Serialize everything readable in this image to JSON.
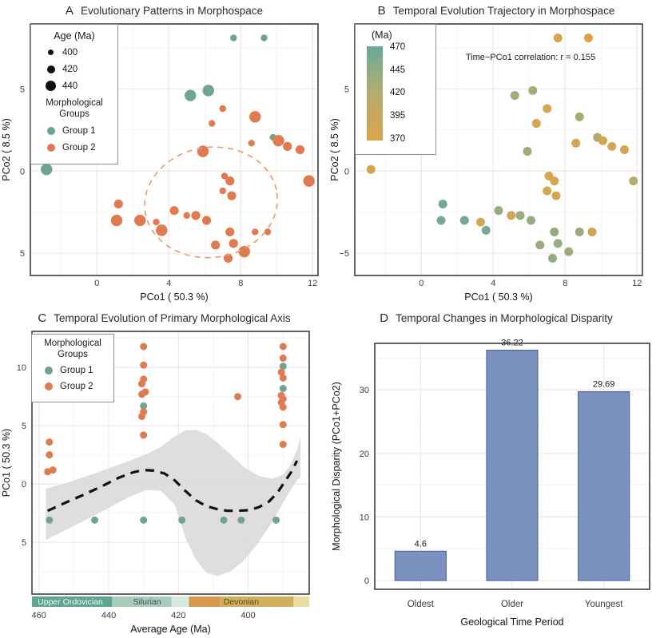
{
  "figure": {
    "background": "#ffffff",
    "frame_color": "#3d3d3d",
    "grid_major_color": "#f0e6e6",
    "grid_minor_color": "#f8f3f3",
    "group_colors": {
      "group1": "#6FA48F",
      "group2": "#E07A50"
    }
  },
  "chart_data": [
    {
      "panel_label": "A",
      "type": "scatter",
      "title": "Evolutionary Patterns in Morphospace",
      "xlabel": "PCo1 ( 50.3 %)",
      "ylabel": "PCo2 ( 8.5 %)",
      "xlim": [
        -3.7,
        12.3
      ],
      "ylim": [
        -6.35,
        8.95
      ],
      "x_ticks": [
        {
          "v": 0,
          "t": "0"
        },
        {
          "v": 4,
          "t": "4"
        },
        {
          "v": 8,
          "t": "8"
        },
        {
          "v": 12,
          "t": "12"
        }
      ],
      "y_ticks": [
        {
          "v": 5,
          "t": "5"
        },
        {
          "v": 0,
          "t": "0"
        },
        {
          "v": -5,
          "t": "5"
        }
      ],
      "x_minor": [
        -2,
        2,
        6,
        10
      ],
      "y_minor": [
        7.5,
        2.5,
        -2.5
      ],
      "legend": {
        "size_title": "Age (Ma)",
        "size_items": [
          {
            "label": "400"
          },
          {
            "label": "420"
          },
          {
            "label": "440"
          }
        ],
        "group_title": "Morphological Groups",
        "group_items": [
          {
            "label": "Group 1",
            "color": "#6FA48F"
          },
          {
            "label": "Group 2",
            "color": "#E07A50"
          }
        ]
      },
      "ellipse": {
        "cx": 6.35,
        "cy": -1.9,
        "rx": 3.7,
        "ry": 3.35,
        "angle": -8,
        "color": "#ED9C72"
      },
      "size_radius": {
        "400": 4.2,
        "420": 5.6,
        "440": 7.2
      },
      "points": [
        {
          "x": -2.8,
          "y": 0.1,
          "s": 440,
          "g": 1,
          "a": 375
        },
        {
          "x": 7.6,
          "y": 8.1,
          "s": 400,
          "g": 1,
          "a": 372
        },
        {
          "x": 9.3,
          "y": 8.1,
          "s": 400,
          "g": 1,
          "a": 372
        },
        {
          "x": 5.2,
          "y": 4.6,
          "s": 440,
          "g": 1,
          "a": 430
        },
        {
          "x": 6.2,
          "y": 4.9,
          "s": 440,
          "g": 1,
          "a": 430
        },
        {
          "x": 9.8,
          "y": 2.05,
          "s": 400,
          "g": 1,
          "a": 428
        },
        {
          "x": 7.0,
          "y": 3.8,
          "s": 400,
          "g": 2,
          "a": 380
        },
        {
          "x": 6.4,
          "y": 2.9,
          "s": 400,
          "g": 2,
          "a": 380
        },
        {
          "x": 8.8,
          "y": 3.3,
          "s": 440,
          "g": 2,
          "a": 430
        },
        {
          "x": 10.1,
          "y": 1.85,
          "s": 440,
          "g": 2,
          "a": 382
        },
        {
          "x": 10.6,
          "y": 1.5,
          "s": 420,
          "g": 2,
          "a": 380
        },
        {
          "x": 8.6,
          "y": 1.7,
          "s": 400,
          "g": 2,
          "a": 382
        },
        {
          "x": 5.9,
          "y": 1.2,
          "s": 440,
          "g": 2,
          "a": 432
        },
        {
          "x": 11.3,
          "y": 1.3,
          "s": 420,
          "g": 2,
          "a": 380
        },
        {
          "x": 11.8,
          "y": -0.6,
          "s": 440,
          "g": 2,
          "a": 420
        },
        {
          "x": 7.1,
          "y": -0.3,
          "s": 400,
          "g": 2,
          "a": 378
        },
        {
          "x": 7.4,
          "y": -0.6,
          "s": 420,
          "g": 2,
          "a": 378
        },
        {
          "x": 7.0,
          "y": -1.2,
          "s": 400,
          "g": 2,
          "a": 380
        },
        {
          "x": 7.5,
          "y": -1.5,
          "s": 420,
          "g": 2,
          "a": 380
        },
        {
          "x": 1.2,
          "y": -2.0,
          "s": 420,
          "g": 2,
          "a": 462
        },
        {
          "x": 1.1,
          "y": -3.0,
          "s": 440,
          "g": 2,
          "a": 465
        },
        {
          "x": 2.4,
          "y": -3.0,
          "s": 440,
          "g": 2,
          "a": 463
        },
        {
          "x": 3.3,
          "y": -3.1,
          "s": 400,
          "g": 2,
          "a": 390
        },
        {
          "x": 3.6,
          "y": -3.6,
          "s": 440,
          "g": 2,
          "a": 460
        },
        {
          "x": 4.3,
          "y": -2.4,
          "s": 420,
          "g": 2,
          "a": 440
        },
        {
          "x": 5.0,
          "y": -2.7,
          "s": 400,
          "g": 2,
          "a": 388
        },
        {
          "x": 5.5,
          "y": -2.7,
          "s": 420,
          "g": 2,
          "a": 437
        },
        {
          "x": 6.1,
          "y": -3.0,
          "s": 420,
          "g": 2,
          "a": 440
        },
        {
          "x": 6.6,
          "y": -4.5,
          "s": 420,
          "g": 2,
          "a": 438
        },
        {
          "x": 7.4,
          "y": -3.7,
          "s": 420,
          "g": 2,
          "a": 442
        },
        {
          "x": 7.6,
          "y": -4.4,
          "s": 420,
          "g": 2,
          "a": 440
        },
        {
          "x": 7.3,
          "y": -5.3,
          "s": 420,
          "g": 2,
          "a": 441
        },
        {
          "x": 8.2,
          "y": -4.9,
          "s": 440,
          "g": 2,
          "a": 436
        },
        {
          "x": 8.8,
          "y": -3.7,
          "s": 400,
          "g": 2,
          "a": 438
        },
        {
          "x": 9.5,
          "y": -3.7,
          "s": 400,
          "g": 2,
          "a": 388
        }
      ]
    },
    {
      "panel_label": "B",
      "type": "scatter",
      "title": "Temporal Evolution Trajectory in Morphospace",
      "xlabel": "PCo1 ( 50.3 %)",
      "ylabel": "PCo2 ( 8.5 %)",
      "xlim": [
        -3.7,
        12.3
      ],
      "ylim": [
        -6.35,
        8.95
      ],
      "x_ticks": [
        {
          "v": 0,
          "t": "0"
        },
        {
          "v": 4,
          "t": "4"
        },
        {
          "v": 8,
          "t": "8"
        },
        {
          "v": 12,
          "t": "12"
        }
      ],
      "y_ticks": [
        {
          "v": 5,
          "t": "5"
        },
        {
          "v": 0,
          "t": "0"
        },
        {
          "v": -5,
          "t": "−5"
        }
      ],
      "x_minor": [
        -2,
        2,
        6,
        10
      ],
      "y_minor": [
        7.5,
        2.5,
        -2.5
      ],
      "annotation": "Time−PCo1 correlation: r = 0.155",
      "point_radius": 5.5,
      "points_from": 0,
      "colorbar": {
        "title": "(Ma)",
        "ticks": [
          "470",
          "445",
          "420",
          "395",
          "370"
        ],
        "stops": [
          {
            "v": 470,
            "c": "#69A897"
          },
          {
            "v": 445,
            "c": "#8FAC83"
          },
          {
            "v": 420,
            "c": "#B5AC6E"
          },
          {
            "v": 395,
            "c": "#CBA75B"
          },
          {
            "v": 370,
            "c": "#D9A54A"
          }
        ]
      }
    },
    {
      "panel_label": "C",
      "type": "scatter",
      "title": "Temporal Evolution of Primary Morphological Axis",
      "xlabel": "Average Age (Ma)",
      "ylabel": "PCo1 ( 50.3 %)",
      "xlim": [
        462,
        382.5
      ],
      "ylim": [
        -9.45,
        13.1
      ],
      "x_ticks": [
        {
          "v": 460,
          "t": "460"
        },
        {
          "v": 440,
          "t": "440"
        },
        {
          "v": 420,
          "t": "420"
        },
        {
          "v": 400,
          "t": "400"
        }
      ],
      "y_ticks": [
        {
          "v": 10,
          "t": "10"
        },
        {
          "v": 5,
          "t": "5"
        },
        {
          "v": 0,
          "t": "0"
        },
        {
          "v": -5,
          "t": "5"
        }
      ],
      "x_minor": [
        450,
        430,
        410,
        390
      ],
      "y_minor": [
        12.5,
        7.5,
        2.5,
        -2.5,
        -7.5
      ],
      "legend": {
        "group_title": "Morphological Groups",
        "group_items": [
          {
            "label": "Group 1",
            "color": "#6FA48F"
          },
          {
            "label": "Group 2",
            "color": "#E07A50"
          }
        ]
      },
      "point_radius": 4.5,
      "points": [
        {
          "a": 457,
          "y": 3.6,
          "g": 2
        },
        {
          "a": 457,
          "y": 2.5,
          "g": 2
        },
        {
          "a": 456,
          "y": 1.2,
          "g": 2
        },
        {
          "a": 457.5,
          "y": 1.05,
          "g": 2
        },
        {
          "a": 457,
          "y": -3.1,
          "g": 1
        },
        {
          "a": 444,
          "y": -3.1,
          "g": 1
        },
        {
          "a": 430,
          "y": 11.8,
          "g": 2
        },
        {
          "a": 430,
          "y": 10.2,
          "g": 2
        },
        {
          "a": 430,
          "y": 9.0,
          "g": 2
        },
        {
          "a": 430.5,
          "y": 8.6,
          "g": 2
        },
        {
          "a": 429.5,
          "y": 7.9,
          "g": 2
        },
        {
          "a": 430.5,
          "y": 7.7,
          "g": 2
        },
        {
          "a": 430,
          "y": 6.7,
          "g": 1
        },
        {
          "a": 430,
          "y": 6.2,
          "g": 2
        },
        {
          "a": 430.5,
          "y": 5.8,
          "g": 2
        },
        {
          "a": 430,
          "y": 4.2,
          "g": 2
        },
        {
          "a": 430,
          "y": -3.1,
          "g": 1
        },
        {
          "a": 419,
          "y": -3.1,
          "g": 1
        },
        {
          "a": 403,
          "y": 7.5,
          "g": 2
        },
        {
          "a": 407,
          "y": -3.1,
          "g": 1
        },
        {
          "a": 402,
          "y": -3.1,
          "g": 1
        },
        {
          "a": 390,
          "y": 11.8,
          "g": 2
        },
        {
          "a": 390,
          "y": 10.8,
          "g": 2
        },
        {
          "a": 390,
          "y": 10.1,
          "g": 1
        },
        {
          "a": 390.5,
          "y": 9.6,
          "g": 2
        },
        {
          "a": 390,
          "y": 9.1,
          "g": 2
        },
        {
          "a": 390,
          "y": 8.2,
          "g": 1
        },
        {
          "a": 390.5,
          "y": 7.6,
          "g": 2
        },
        {
          "a": 390,
          "y": 7.3,
          "g": 2
        },
        {
          "a": 390.5,
          "y": 7.0,
          "g": 2
        },
        {
          "a": 390,
          "y": 6.6,
          "g": 2
        },
        {
          "a": 390,
          "y": 5.1,
          "g": 2
        },
        {
          "a": 390,
          "y": 3.4,
          "g": 2
        },
        {
          "a": 392,
          "y": -3.1,
          "g": 1
        }
      ],
      "trend": {
        "color": "#111111",
        "points": [
          [
            457.5,
            -2.3
          ],
          [
            452,
            -1.55
          ],
          [
            447,
            -0.9
          ],
          [
            442,
            -0.2
          ],
          [
            437,
            0.55
          ],
          [
            433,
            1.0
          ],
          [
            430,
            1.2
          ],
          [
            427,
            1.15
          ],
          [
            424,
            0.9
          ],
          [
            421,
            0.3
          ],
          [
            418,
            -0.6
          ],
          [
            415,
            -1.4
          ],
          [
            412,
            -1.9
          ],
          [
            409,
            -2.15
          ],
          [
            406,
            -2.3
          ],
          [
            403,
            -2.3
          ],
          [
            400,
            -2.25
          ],
          [
            397,
            -2.0
          ],
          [
            394,
            -1.5
          ],
          [
            391.5,
            -0.7
          ],
          [
            389.5,
            0.2
          ],
          [
            387.5,
            1.1
          ],
          [
            386,
            2.0
          ]
        ]
      },
      "band": {
        "color": "#dbd8d6",
        "points": [
          [
            458,
            -0.4,
            -4.8
          ],
          [
            452,
            0.1,
            -3.9
          ],
          [
            446,
            0.7,
            -3.0
          ],
          [
            440,
            1.35,
            -2.05
          ],
          [
            434,
            2.0,
            -1.1
          ],
          [
            429,
            2.6,
            -0.5
          ],
          [
            425,
            3.2,
            -0.6
          ],
          [
            421,
            4.1,
            -1.8
          ],
          [
            418,
            4.6,
            -4.6
          ],
          [
            415,
            4.65,
            -6.5
          ],
          [
            412,
            4.3,
            -7.6
          ],
          [
            409,
            3.6,
            -7.9
          ],
          [
            405,
            2.5,
            -7.5
          ],
          [
            401,
            1.4,
            -6.5
          ],
          [
            397,
            0.7,
            -5.0
          ],
          [
            393,
            0.45,
            -3.2
          ],
          [
            390,
            0.8,
            -1.6
          ],
          [
            388,
            1.6,
            -0.6
          ],
          [
            386,
            2.9,
            0.3
          ],
          [
            385,
            4.1,
            0.6
          ]
        ]
      },
      "geo_strip": {
        "segments": [
          {
            "from": 462,
            "to": 439,
            "color": "#5FA68C"
          },
          {
            "from": 439,
            "to": 422,
            "color": "#A6CDBA"
          },
          {
            "from": 422,
            "to": 417,
            "color": "#D7E8DE"
          },
          {
            "from": 417,
            "to": 408,
            "color": "#D9994C"
          },
          {
            "from": 408,
            "to": 387,
            "color": "#D2AF5A"
          },
          {
            "from": 387,
            "to": 382.5,
            "color": "#EBDBA2"
          }
        ],
        "labels": [
          {
            "text": "Upper Ordovician",
            "age": 451,
            "color": "#F4F9F6"
          },
          {
            "text": "Silurian",
            "age": 429,
            "color": "#4B4B4B"
          },
          {
            "text": "Devonian",
            "age": 402,
            "color": "#5A4A21"
          }
        ]
      }
    },
    {
      "panel_label": "D",
      "type": "bar",
      "title": "Temporal Changes in Morphological Disparity",
      "xlabel": "Geological Time Period",
      "ylabel": "Morphological Disparity (PCo1+PCo2)",
      "categories": [
        "Oldest",
        "Older",
        "Youngest"
      ],
      "values": [
        4.6,
        36.22,
        29.69
      ],
      "value_labels": [
        "4.6",
        "36.22",
        "29.69"
      ],
      "ylim": [
        0,
        37.3
      ],
      "y_ticks": [
        {
          "v": 0,
          "t": "0"
        },
        {
          "v": 10,
          "t": "10"
        },
        {
          "v": 20,
          "t": "20"
        },
        {
          "v": 30,
          "t": "30"
        }
      ],
      "y_minor": [
        5,
        15,
        25,
        35
      ],
      "bar_color": "#7B91C0",
      "bar_border": "#56689B"
    }
  ]
}
